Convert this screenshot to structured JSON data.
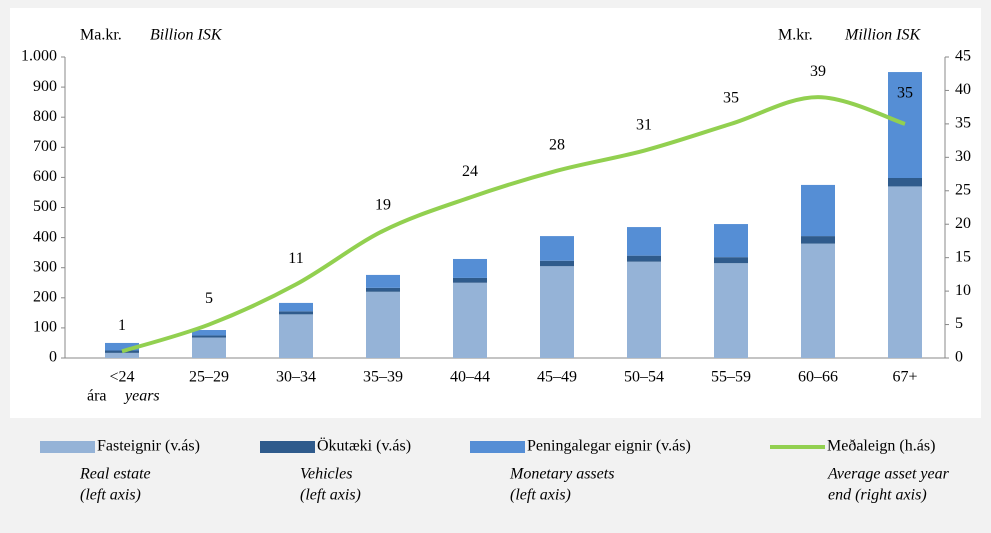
{
  "chart_data": {
    "type": "bar_line",
    "ylabel": [
      "Ma.kr.",
      "Billion ISK"
    ],
    "y2label": [
      "M.kr.",
      "Million ISK"
    ],
    "xlabel": [
      "ára",
      "years"
    ],
    "categories": [
      "<24",
      "25–29",
      "30–34",
      "35–39",
      "40–44",
      "45–49",
      "50–54",
      "55–59",
      "60–66",
      "67+"
    ],
    "series": [
      {
        "name": "Fasteignir (v.ás)",
        "name_en": [
          "Real estate",
          "(left axis)"
        ],
        "color": "#95b3d7",
        "kind": "bar",
        "values": [
          17,
          68,
          145,
          220,
          250,
          305,
          320,
          315,
          380,
          570
        ]
      },
      {
        "name": "Ökutæki (v.ás)",
        "name_en": [
          "Vehicles",
          "(left axis)"
        ],
        "color": "#2f5b8c",
        "kind": "bar",
        "values": [
          8,
          7,
          10,
          13,
          16,
          18,
          20,
          20,
          25,
          28
        ]
      },
      {
        "name": "Peningalegar eignir (v.ás)",
        "name_en": [
          "Monetary assets",
          "(left axis)"
        ],
        "color": "#558ed5",
        "kind": "bar",
        "values": [
          25,
          18,
          28,
          43,
          63,
          82,
          95,
          110,
          170,
          352
        ]
      },
      {
        "name": "Meðaleign (h.ás)",
        "name_en": [
          "Average asset year",
          "end (right axis)"
        ],
        "color": "#92d050",
        "kind": "line",
        "axis": "y2",
        "values": [
          1,
          5,
          11,
          19,
          24,
          28,
          31,
          35,
          39,
          35
        ]
      }
    ],
    "ylim": [
      0,
      1000
    ],
    "yticks": [
      0,
      100,
      200,
      300,
      400,
      500,
      600,
      700,
      800,
      900,
      {
        "value": 1000,
        "label": "1.000"
      }
    ],
    "y2lim": [
      0,
      45
    ],
    "y2ticks": [
      0,
      5,
      10,
      15,
      20,
      25,
      30,
      35,
      40,
      45
    ]
  }
}
